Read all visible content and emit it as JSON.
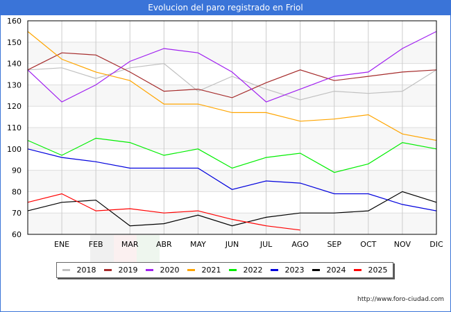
{
  "header": {
    "title": "Evolucion del paro registrado en Friol"
  },
  "footer": {
    "url": "http://www.foro-ciudad.com"
  },
  "chart_data": {
    "type": "line",
    "title": "Evolucion del paro registrado en Friol",
    "xlabel": "",
    "ylabel": "",
    "x": [
      "",
      "ENE",
      "FEB",
      "MAR",
      "ABR",
      "MAY",
      "JUN",
      "JUL",
      "AGO",
      "SEP",
      "OCT",
      "NOV",
      "DIC"
    ],
    "ylim": [
      60,
      160
    ],
    "yticks": [
      60,
      70,
      80,
      90,
      100,
      110,
      120,
      130,
      140,
      150,
      160
    ],
    "grid": true,
    "legend_position": "bottom",
    "series": [
      {
        "name": "2018",
        "color": "#c0c0c0",
        "values": [
          137,
          138,
          133,
          138,
          140,
          127,
          134,
          128,
          123,
          127,
          126,
          127,
          137
        ]
      },
      {
        "name": "2019",
        "color": "#a52a2a",
        "values": [
          137,
          145,
          144,
          136,
          127,
          128,
          124,
          131,
          137,
          132,
          134,
          136,
          137
        ]
      },
      {
        "name": "2020",
        "color": "#a020f0",
        "values": [
          137,
          122,
          130,
          141,
          147,
          145,
          136,
          122,
          128,
          134,
          136,
          147,
          155
        ]
      },
      {
        "name": "2021",
        "color": "#ffa500",
        "values": [
          155,
          142,
          136,
          132,
          121,
          121,
          117,
          117,
          113,
          114,
          116,
          107,
          104
        ]
      },
      {
        "name": "2022",
        "color": "#00ee00",
        "values": [
          104,
          97,
          105,
          103,
          97,
          100,
          91,
          96,
          98,
          89,
          93,
          103,
          100
        ]
      },
      {
        "name": "2023",
        "color": "#0000dd",
        "values": [
          100,
          96,
          94,
          91,
          91,
          91,
          81,
          85,
          84,
          79,
          79,
          74,
          71
        ]
      },
      {
        "name": "2024",
        "color": "#000000",
        "values": [
          71,
          75,
          76,
          64,
          65,
          69,
          64,
          68,
          70,
          70,
          71,
          80,
          75
        ]
      },
      {
        "name": "2025",
        "color": "#ff0000",
        "values": [
          75,
          79,
          71,
          72,
          70,
          71,
          67,
          64,
          62,
          null,
          null,
          null,
          null
        ]
      }
    ]
  }
}
